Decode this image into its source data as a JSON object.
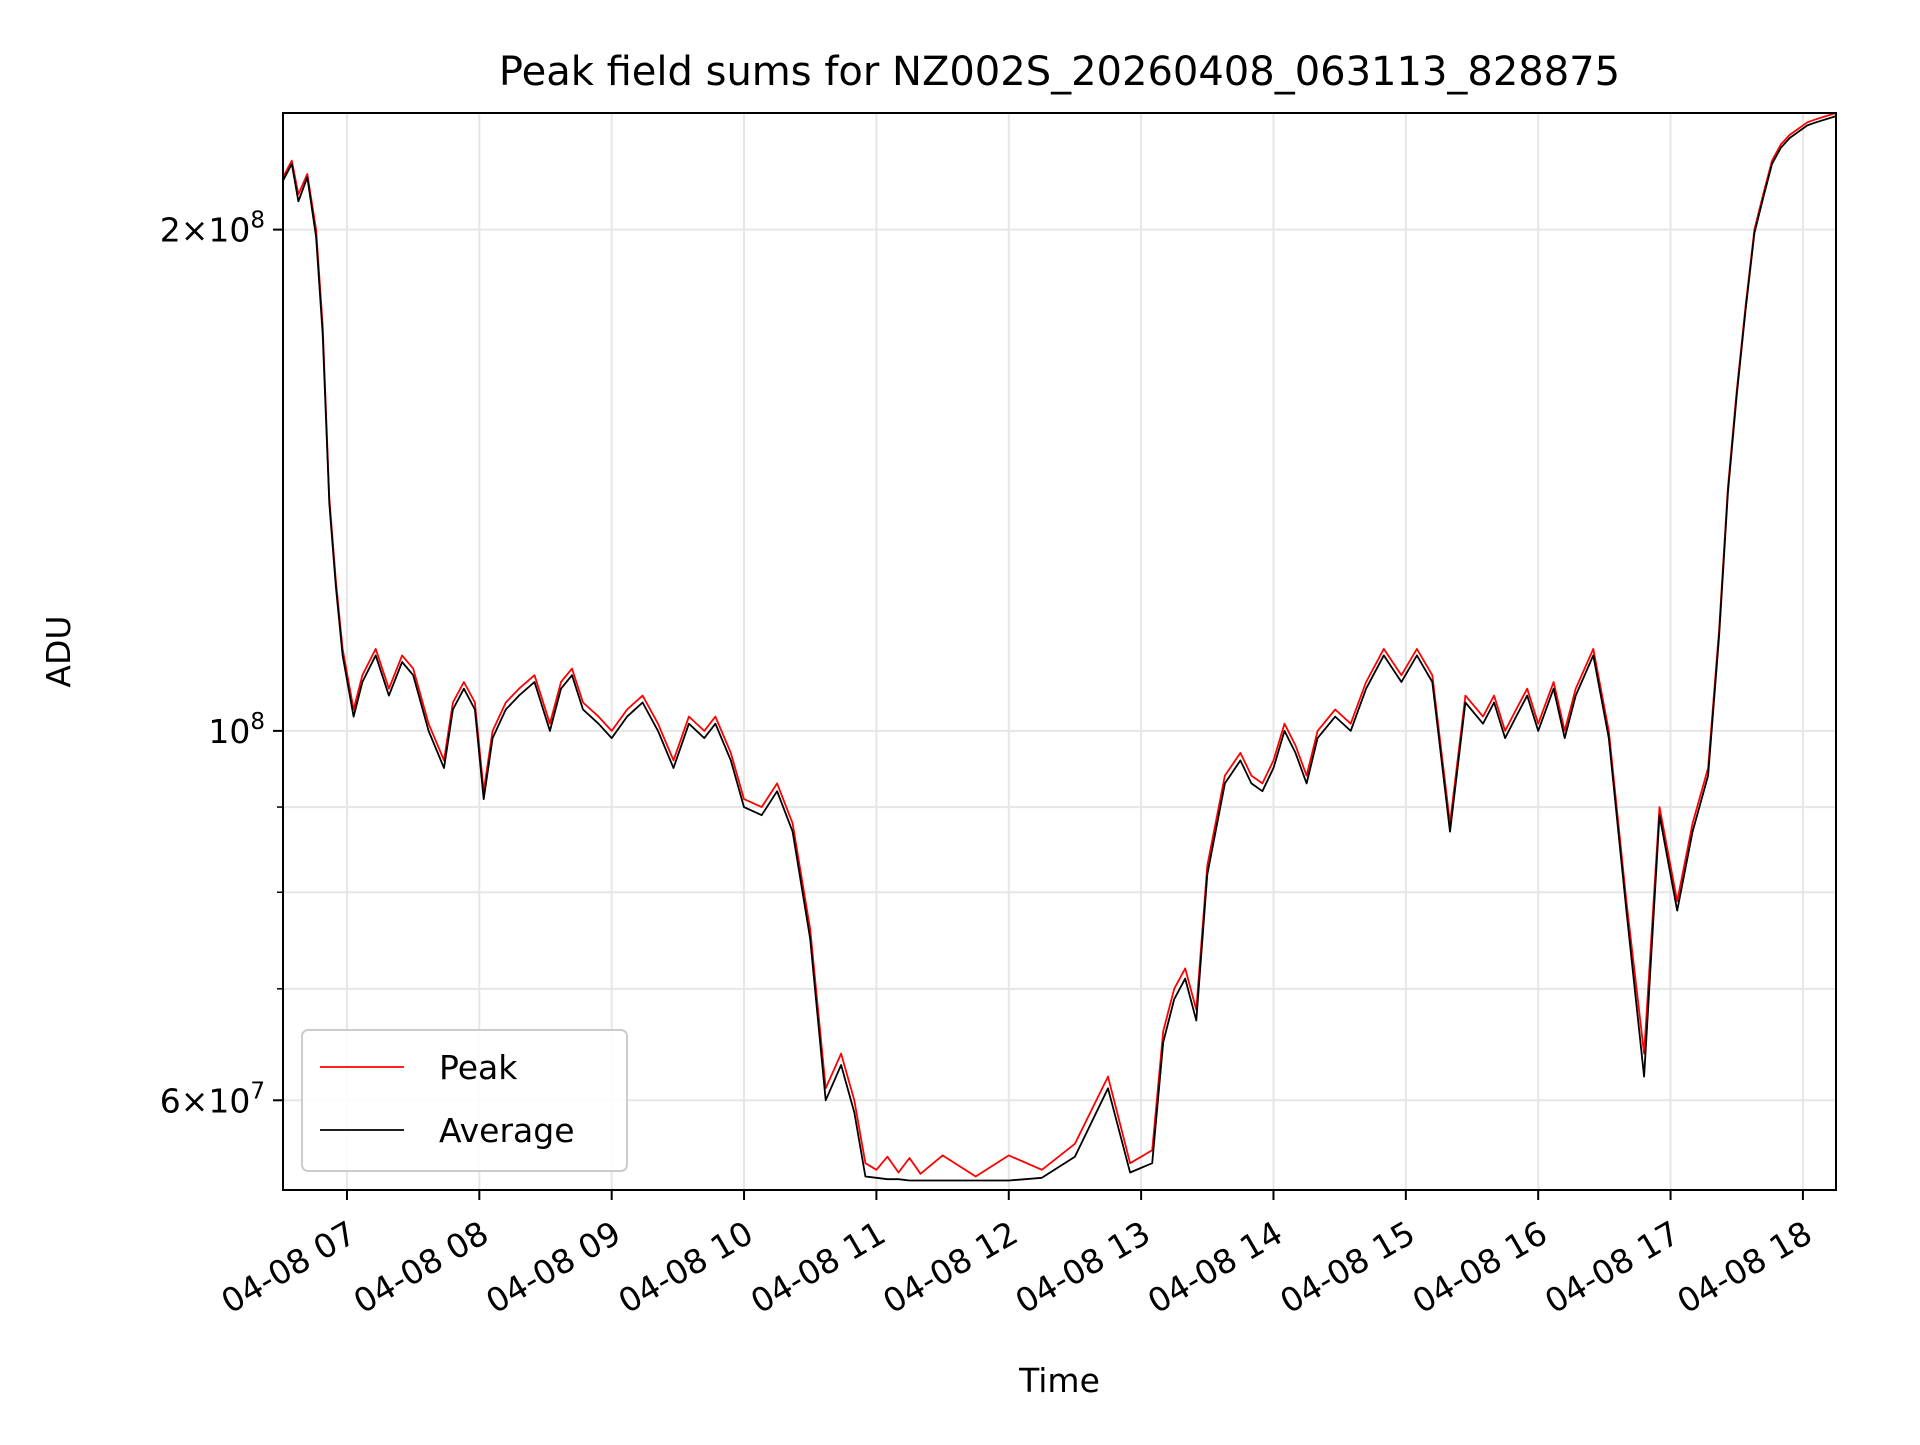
{
  "chart_data": {
    "type": "line",
    "title": "Peak field sums for NZ002S_20260408_063113_828875",
    "xlabel": "Time",
    "ylabel": "ADU",
    "yscale": "log",
    "ylim": [
      53000000,
      235000000
    ],
    "xlim": [
      "04-08 06:31",
      "04-08 18:15"
    ],
    "grid": true,
    "legend_position": "lower-left",
    "x_ticks": [
      "04-08 07",
      "04-08 08",
      "04-08 09",
      "04-08 10",
      "04-08 11",
      "04-08 12",
      "04-08 13",
      "04-08 14",
      "04-08 15",
      "04-08 16",
      "04-08 17",
      "04-08 18"
    ],
    "y_ticks": [
      {
        "value": 200000000,
        "mant": "2",
        "exp": "8"
      },
      {
        "value": 100000000,
        "mant": "",
        "exp": "8"
      },
      {
        "value": 60000000,
        "mant": "6",
        "exp": "7"
      }
    ],
    "y_minor_ticks": [
      70000000,
      80000000,
      90000000
    ],
    "x": [
      "04-08 06:31",
      "04-08 06:35",
      "04-08 06:38",
      "04-08 06:42",
      "04-08 06:46",
      "04-08 06:49",
      "04-08 06:52",
      "04-08 06:55",
      "04-08 06:58",
      "04-08 07:03",
      "04-08 07:07",
      "04-08 07:13",
      "04-08 07:19",
      "04-08 07:25",
      "04-08 07:30",
      "04-08 07:37",
      "04-08 07:44",
      "04-08 07:48",
      "04-08 07:53",
      "04-08 07:58",
      "04-08 08:02",
      "04-08 08:06",
      "04-08 08:12",
      "04-08 08:18",
      "04-08 08:25",
      "04-08 08:32",
      "04-08 08:37",
      "04-08 08:42",
      "04-08 08:47",
      "04-08 08:54",
      "04-08 09:00",
      "04-08 09:07",
      "04-08 09:14",
      "04-08 09:21",
      "04-08 09:28",
      "04-08 09:35",
      "04-08 09:42",
      "04-08 09:47",
      "04-08 09:54",
      "04-08 10:00",
      "04-08 10:08",
      "04-08 10:15",
      "04-08 10:22",
      "04-08 10:30",
      "04-08 10:37",
      "04-08 10:44",
      "04-08 10:50",
      "04-08 10:55",
      "04-08 11:00",
      "04-08 11:05",
      "04-08 11:10",
      "04-08 11:15",
      "04-08 11:20",
      "04-08 11:30",
      "04-08 11:45",
      "04-08 12:00",
      "04-08 12:15",
      "04-08 12:30",
      "04-08 12:45",
      "04-08 12:55",
      "04-08 13:05",
      "04-08 13:10",
      "04-08 13:15",
      "04-08 13:20",
      "04-08 13:25",
      "04-08 13:30",
      "04-08 13:38",
      "04-08 13:45",
      "04-08 13:50",
      "04-08 13:55",
      "04-08 14:00",
      "04-08 14:05",
      "04-08 14:10",
      "04-08 14:15",
      "04-08 14:20",
      "04-08 14:28",
      "04-08 14:35",
      "04-08 14:42",
      "04-08 14:50",
      "04-08 14:58",
      "04-08 15:05",
      "04-08 15:12",
      "04-08 15:20",
      "04-08 15:27",
      "04-08 15:35",
      "04-08 15:40",
      "04-08 15:45",
      "04-08 15:50",
      "04-08 15:55",
      "04-08 16:00",
      "04-08 16:07",
      "04-08 16:12",
      "04-08 16:17",
      "04-08 16:25",
      "04-08 16:32",
      "04-08 16:40",
      "04-08 16:48",
      "04-08 16:55",
      "04-08 17:03",
      "04-08 17:10",
      "04-08 17:17",
      "04-08 17:22",
      "04-08 17:26",
      "04-08 17:30",
      "04-08 17:34",
      "04-08 17:38",
      "04-08 17:42",
      "04-08 17:46",
      "04-08 17:50",
      "04-08 17:54",
      "04-08 17:58",
      "04-08 18:02",
      "04-08 18:06",
      "04-08 18:15"
    ],
    "series": [
      {
        "name": "Peak",
        "color": "#ff0000",
        "values": [
          215000000,
          220000000,
          210000000,
          216000000,
          200000000,
          175000000,
          138000000,
          123000000,
          112000000,
          103000000,
          108000000,
          112000000,
          106000000,
          111000000,
          109000000,
          101000000,
          96000000,
          104000000,
          107000000,
          104000000,
          92000000,
          100000000,
          104000000,
          106000000,
          108000000,
          101000000,
          107000000,
          109000000,
          104000000,
          102000000,
          100000000,
          103000000,
          105000000,
          101000000,
          96000000,
          102000000,
          100000000,
          102000000,
          97000000,
          91000000,
          90000000,
          93000000,
          88000000,
          76000000,
          61000000,
          64000000,
          60000000,
          55000000,
          54500000,
          55500000,
          54300000,
          55400000,
          54200000,
          55600000,
          54000000,
          55600000,
          54500000,
          56500000,
          62000000,
          55000000,
          56000000,
          66000000,
          70000000,
          72000000,
          68000000,
          83000000,
          94000000,
          97000000,
          94000000,
          93000000,
          96000000,
          101000000,
          98000000,
          94000000,
          100000000,
          103000000,
          101000000,
          107000000,
          112000000,
          108000000,
          112000000,
          108000000,
          88000000,
          105000000,
          102000000,
          105000000,
          100000000,
          103000000,
          106000000,
          101000000,
          107000000,
          100000000,
          106000000,
          112000000,
          100000000,
          79000000,
          64000000,
          90000000,
          79000000,
          88000000,
          95000000,
          115000000,
          140000000,
          160000000,
          180000000,
          200000000,
          210000000,
          220000000,
          225000000,
          228000000,
          230000000,
          232000000,
          233000000,
          235000000
        ]
      },
      {
        "name": "Average",
        "color": "#000000",
        "values": [
          214000000,
          219000000,
          208000000,
          215000000,
          198000000,
          173000000,
          137000000,
          122000000,
          111000000,
          102000000,
          107000000,
          111000000,
          105000000,
          110000000,
          108000000,
          100000000,
          95000000,
          103000000,
          106000000,
          103000000,
          91000000,
          99000000,
          103000000,
          105000000,
          107000000,
          100000000,
          106000000,
          108000000,
          103000000,
          101000000,
          99000000,
          102000000,
          104000000,
          100000000,
          95000000,
          101000000,
          99000000,
          101000000,
          96000000,
          90000000,
          89000000,
          92000000,
          87000000,
          75000000,
          60000000,
          63000000,
          59000000,
          54000000,
          53900000,
          53800000,
          53800000,
          53700000,
          53700000,
          53700000,
          53700000,
          53700000,
          53900000,
          55500000,
          61000000,
          54300000,
          55000000,
          65000000,
          69000000,
          71000000,
          67000000,
          82000000,
          93000000,
          96000000,
          93000000,
          92000000,
          95000000,
          100000000,
          97000000,
          93000000,
          99000000,
          102000000,
          100000000,
          106000000,
          111000000,
          107000000,
          111000000,
          107000000,
          87000000,
          104000000,
          101000000,
          104000000,
          99000000,
          102000000,
          105000000,
          100000000,
          106000000,
          99000000,
          105000000,
          111000000,
          99000000,
          78000000,
          62000000,
          89000000,
          78000000,
          87000000,
          94000000,
          114000000,
          139000000,
          159000000,
          179000000,
          199000000,
          209000000,
          219000000,
          224000000,
          227000000,
          229000000,
          231000000,
          232000000,
          234000000
        ]
      }
    ]
  }
}
